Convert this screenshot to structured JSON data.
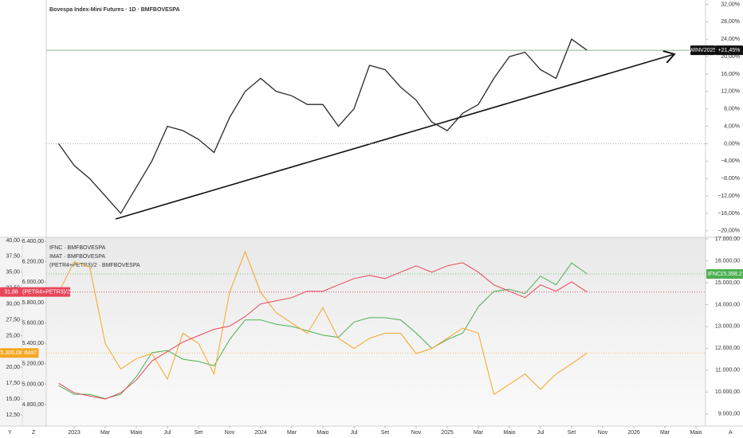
{
  "chart_data": [
    {
      "type": "line",
      "title": "Bovespa Index-Mini Futures · 1D · BMFBOVESPA",
      "x": [
        "2022-12",
        "2023-01",
        "2023-02",
        "2023-03",
        "2023-04",
        "2023-05",
        "2023-06",
        "2023-07",
        "2023-08",
        "2023-09",
        "2023-10",
        "2023-11",
        "2023-12",
        "2024-01",
        "2024-02",
        "2024-03",
        "2024-04",
        "2024-05",
        "2024-06",
        "2024-07",
        "2024-08",
        "2024-09",
        "2024-10",
        "2024-11",
        "2024-12",
        "2025-01",
        "2025-02",
        "2025-03",
        "2025-04",
        "2025-05",
        "2025-06",
        "2025-07",
        "2025-08",
        "2025-09",
        "2025-10"
      ],
      "series": [
        {
          "name": "WINV2025",
          "color": "#2a2a2a",
          "values": [
            0,
            -5,
            -8,
            -12,
            -16,
            -10,
            -4,
            4,
            3,
            1,
            -2,
            6,
            12,
            15,
            12,
            11,
            9,
            9,
            4,
            8,
            18,
            17,
            13,
            10,
            5,
            3,
            7,
            9,
            15,
            20,
            21,
            17,
            15,
            24,
            21.45
          ],
          "value_labels": [
            null,
            null,
            null,
            null,
            null,
            null,
            null,
            null,
            null,
            null,
            null,
            null,
            null,
            null,
            null,
            null,
            null,
            null,
            null,
            null,
            null,
            null,
            null,
            null,
            null,
            null,
            null,
            null,
            null,
            null,
            null,
            null,
            null,
            null,
            "+21,45%"
          ]
        }
      ],
      "ylim": [
        -21.5,
        33
      ],
      "yticks": [
        {
          "value": 32,
          "label": "32,00%"
        },
        {
          "value": 28,
          "label": "28,00%"
        },
        {
          "value": 24,
          "label": "24,00%"
        },
        {
          "value": 20,
          "label": "20,00%"
        },
        {
          "value": 16,
          "label": "16,00%"
        },
        {
          "value": 12,
          "label": "12,00%"
        },
        {
          "value": 8,
          "label": "8,00%"
        },
        {
          "value": 4,
          "label": "4,00%"
        },
        {
          "value": 0,
          "label": "0,00%"
        },
        {
          "value": -4,
          "label": "−4,00%"
        },
        {
          "value": -8,
          "label": "−8,00%"
        },
        {
          "value": -12,
          "label": "−12,00%"
        },
        {
          "value": -16,
          "label": "−16,00%"
        },
        {
          "value": -20,
          "label": "−20,00%"
        }
      ],
      "zero_line": true
    },
    {
      "type": "line",
      "x": [
        "2022-12",
        "2023-01",
        "2023-02",
        "2023-03",
        "2023-04",
        "2023-05",
        "2023-06",
        "2023-07",
        "2023-08",
        "2023-09",
        "2023-10",
        "2023-11",
        "2023-12",
        "2024-01",
        "2024-02",
        "2024-03",
        "2024-04",
        "2024-05",
        "2024-06",
        "2024-07",
        "2024-08",
        "2024-09",
        "2024-10",
        "2024-11",
        "2024-12",
        "2025-01",
        "2025-02",
        "2025-03",
        "2025-04",
        "2025-05",
        "2025-06",
        "2025-07",
        "2025-08",
        "2025-09",
        "2025-10"
      ],
      "series": [
        {
          "name": "IFNC · BMFBOVESPA",
          "short_name": "IFNC",
          "color": "#4caf50",
          "axis": "y",
          "values": [
            10300,
            9900,
            9900,
            9700,
            9900,
            10700,
            11800,
            11900,
            11500,
            11400,
            11200,
            12400,
            13300,
            13300,
            13100,
            13000,
            12800,
            12600,
            12500,
            13200,
            13400,
            13400,
            13300,
            12700,
            12000,
            12400,
            12700,
            13900,
            14600,
            14700,
            14500,
            15300,
            14900,
            15900,
            15398.21
          ],
          "value_labels": [
            null,
            null,
            null,
            null,
            null,
            null,
            null,
            null,
            null,
            null,
            null,
            null,
            null,
            null,
            null,
            null,
            null,
            null,
            null,
            null,
            null,
            null,
            null,
            null,
            null,
            null,
            null,
            null,
            null,
            null,
            null,
            null,
            null,
            null,
            "15.398,21"
          ]
        },
        {
          "name": "IMAT · BMFBOVESPA",
          "short_name": "IMAT",
          "color": "#f5a623",
          "axis": "y3",
          "values": [
            5900,
            6200,
            6150,
            5400,
            5150,
            5250,
            5300,
            5050,
            5500,
            5400,
            5100,
            5900,
            6300,
            5900,
            5700,
            5600,
            5500,
            5750,
            5450,
            5350,
            5450,
            5500,
            5500,
            5300,
            5350,
            5450,
            5550,
            5500,
            4900,
            5000,
            5100,
            4950,
            5100,
            5200,
            5306.08
          ],
          "value_labels": [
            null,
            null,
            null,
            null,
            null,
            null,
            null,
            null,
            null,
            null,
            null,
            null,
            null,
            null,
            null,
            null,
            null,
            null,
            null,
            null,
            null,
            null,
            null,
            null,
            null,
            null,
            null,
            null,
            null,
            null,
            null,
            null,
            null,
            null,
            "5.306,08"
          ]
        },
        {
          "name": "(PETR4+PETR3)/2 · BMFBOVESPA",
          "short_name": "(PETR4+PETR3)/2",
          "color": "#e8455a",
          "axis": "y2",
          "values": [
            17.5,
            16,
            15.5,
            15,
            16,
            18,
            21,
            22.5,
            24,
            25,
            26,
            26.5,
            28,
            30,
            30.5,
            31,
            32,
            32,
            33,
            34,
            34.5,
            34,
            35,
            36,
            35,
            36,
            36.5,
            35,
            33,
            32,
            31,
            33,
            32,
            33.5,
            31.88
          ],
          "value_labels": [
            null,
            null,
            null,
            null,
            null,
            null,
            null,
            null,
            null,
            null,
            null,
            null,
            null,
            null,
            null,
            null,
            null,
            null,
            null,
            null,
            null,
            null,
            null,
            null,
            null,
            null,
            null,
            null,
            null,
            null,
            null,
            null,
            null,
            null,
            "31,88"
          ]
        }
      ],
      "ylim": [
        8450,
        17070
      ],
      "yticks": [
        {
          "value": 17000,
          "label": "17.000,00"
        },
        {
          "value": 16000,
          "label": "16.000,00"
        },
        {
          "value": 15000,
          "label": "15.000,00"
        },
        {
          "value": 14000,
          "label": "14.000,00"
        },
        {
          "value": 13000,
          "label": "13.000,00"
        },
        {
          "value": 12000,
          "label": "12.000,00"
        },
        {
          "value": 11000,
          "label": "11.000,00"
        },
        {
          "value": 10000,
          "label": "10.000,00"
        },
        {
          "value": 9000,
          "label": "9.000,00"
        }
      ],
      "y2lim": [
        10.75,
        40.5
      ],
      "y2ticks": [
        {
          "value": 40,
          "label": "40,00"
        },
        {
          "value": 37.5,
          "label": "37,50"
        },
        {
          "value": 35,
          "label": "35,00"
        },
        {
          "value": 32.5,
          "label": "32,50"
        },
        {
          "value": 30,
          "label": "30,00"
        },
        {
          "value": 27.5,
          "label": "27,50"
        },
        {
          "value": 25,
          "label": "25,00"
        },
        {
          "value": 22.5,
          "label": "22,50"
        },
        {
          "value": 20,
          "label": "20,00"
        },
        {
          "value": 17.5,
          "label": "17,50"
        },
        {
          "value": 15,
          "label": "15,00"
        },
        {
          "value": 12.5,
          "label": "12,50"
        }
      ],
      "y3lim": [
        4590,
        6440
      ],
      "y3ticks": [
        {
          "value": 6400,
          "label": "6.400,00"
        },
        {
          "value": 6200,
          "label": "6.200,00"
        },
        {
          "value": 6000,
          "label": "6.000,00"
        },
        {
          "value": 5800,
          "label": "5.800,00"
        },
        {
          "value": 5600,
          "label": "5.600,00"
        },
        {
          "value": 5400,
          "label": "5.400,00"
        },
        {
          "value": 5200,
          "label": "5.200,00"
        },
        {
          "value": 5000,
          "label": "5.000,00"
        },
        {
          "value": 4800,
          "label": "4.800,00"
        }
      ],
      "xticks": [
        {
          "value": "2023-01",
          "label": "2023"
        },
        {
          "value": "2023-03",
          "label": "Mar"
        },
        {
          "value": "2023-05",
          "label": "Maio"
        },
        {
          "value": "2023-07",
          "label": "Jul"
        },
        {
          "value": "2023-09",
          "label": "Set"
        },
        {
          "value": "2023-11",
          "label": "Nov"
        },
        {
          "value": "2024-01",
          "label": "2024"
        },
        {
          "value": "2024-03",
          "label": "Mar"
        },
        {
          "value": "2024-05",
          "label": "Maio"
        },
        {
          "value": "2024-07",
          "label": "Jul"
        },
        {
          "value": "2024-09",
          "label": "Set"
        },
        {
          "value": "2024-11",
          "label": "Nov"
        },
        {
          "value": "2025-01",
          "label": "2025"
        },
        {
          "value": "2025-03",
          "label": "Mar"
        },
        {
          "value": "2025-05",
          "label": "Maio"
        },
        {
          "value": "2025-07",
          "label": "Jul"
        },
        {
          "value": "2025-09",
          "label": "Set"
        },
        {
          "value": "2025-11",
          "label": "Nov"
        },
        {
          "value": "2026-01",
          "label": "2026"
        },
        {
          "value": "2026-03",
          "label": "Mar"
        },
        {
          "value": "2026-05",
          "label": "Maio"
        }
      ]
    }
  ],
  "toolbar_buttons": [
    "Y",
    "Z",
    "A"
  ]
}
